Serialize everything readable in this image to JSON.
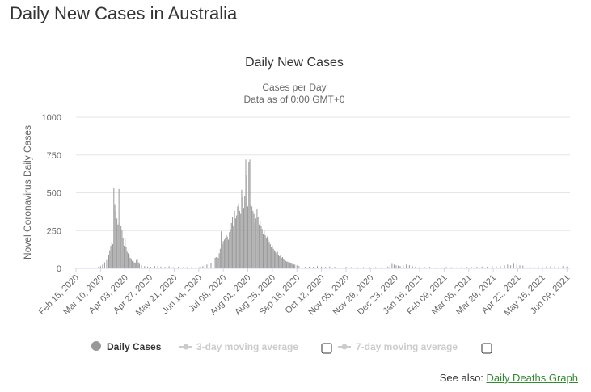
{
  "page": {
    "heading": "Daily New Cases in Australia",
    "see_also_label": "See also:",
    "see_also_link": "Daily Deaths Graph"
  },
  "colors": {
    "bar": "#999999",
    "legend_active": "#333333",
    "legend_inactive": "#cccccc",
    "grid": "#e6e6e6",
    "link": "#338a2e"
  },
  "chart_data": {
    "type": "bar",
    "title": "Daily New Cases",
    "subtitle_lines": [
      "Cases per Day",
      "Data as of 0:00 GMT+0"
    ],
    "ylabel": "Novel Coronavirus Daily Cases",
    "ylim": [
      0,
      1000
    ],
    "yticks": [
      "0",
      "250",
      "500",
      "750",
      "1000"
    ],
    "grid": true,
    "xlim": [
      "2020-02-15",
      "2021-06-12"
    ],
    "xticks": [
      "Feb 15, 2020",
      "Mar 10, 2020",
      "Apr 03, 2020",
      "Apr 27, 2020",
      "May 21, 2020",
      "Jun 14, 2020",
      "Jul 08, 2020",
      "Aug 01, 2020",
      "Aug 25, 2020",
      "Sep 18, 2020",
      "Oct 12, 2020",
      "Nov 05, 2020",
      "Nov 29, 2020",
      "Dec 23, 2020",
      "Jan 16, 2021",
      "Feb 09, 2021",
      "Mar 05, 2021",
      "Mar 29, 2021",
      "Apr 22, 2021",
      "May 16, 2021",
      "Jun 09, 2021"
    ],
    "legend": [
      {
        "name": "Daily Cases",
        "active": true
      },
      {
        "name": "3-day moving average",
        "active": false
      },
      {
        "name": "7-day moving average",
        "active": false
      }
    ],
    "series": [
      {
        "name": "Daily Cases",
        "points": [
          [
            "2020-03-03",
            3
          ],
          [
            "2020-03-06",
            5
          ],
          [
            "2020-03-08",
            10
          ],
          [
            "2020-03-10",
            15
          ],
          [
            "2020-03-12",
            25
          ],
          [
            "2020-03-14",
            40
          ],
          [
            "2020-03-16",
            55
          ],
          [
            "2020-03-18",
            90
          ],
          [
            "2020-03-19",
            120
          ],
          [
            "2020-03-20",
            150
          ],
          [
            "2020-03-21",
            170
          ],
          [
            "2020-03-22",
            160
          ],
          [
            "2020-03-23",
            530
          ],
          [
            "2020-03-24",
            420
          ],
          [
            "2020-03-25",
            380
          ],
          [
            "2020-03-26",
            330
          ],
          [
            "2020-03-27",
            290
          ],
          [
            "2020-03-28",
            525
          ],
          [
            "2020-03-29",
            300
          ],
          [
            "2020-03-30",
            280
          ],
          [
            "2020-03-31",
            250
          ],
          [
            "2020-04-01",
            200
          ],
          [
            "2020-04-02",
            150
          ],
          [
            "2020-04-03",
            195
          ],
          [
            "2020-04-04",
            140
          ],
          [
            "2020-04-05",
            110
          ],
          [
            "2020-04-06",
            100
          ],
          [
            "2020-04-07",
            90
          ],
          [
            "2020-04-08",
            70
          ],
          [
            "2020-04-09",
            60
          ],
          [
            "2020-04-10",
            50
          ],
          [
            "2020-04-11",
            45
          ],
          [
            "2020-04-12",
            40
          ],
          [
            "2020-04-13",
            35
          ],
          [
            "2020-04-14",
            55
          ],
          [
            "2020-04-15",
            60
          ],
          [
            "2020-04-16",
            40
          ],
          [
            "2020-04-17",
            30
          ],
          [
            "2020-04-19",
            20
          ],
          [
            "2020-04-22",
            15
          ],
          [
            "2020-04-25",
            12
          ],
          [
            "2020-04-28",
            10
          ],
          [
            "2020-05-02",
            15
          ],
          [
            "2020-05-05",
            18
          ],
          [
            "2020-05-08",
            12
          ],
          [
            "2020-05-12",
            10
          ],
          [
            "2020-05-16",
            14
          ],
          [
            "2020-05-20",
            8
          ],
          [
            "2020-05-25",
            10
          ],
          [
            "2020-05-30",
            8
          ],
          [
            "2020-06-03",
            10
          ],
          [
            "2020-06-07",
            8
          ],
          [
            "2020-06-11",
            6
          ],
          [
            "2020-06-15",
            10
          ],
          [
            "2020-06-18",
            15
          ],
          [
            "2020-06-20",
            20
          ],
          [
            "2020-06-22",
            25
          ],
          [
            "2020-06-24",
            30
          ],
          [
            "2020-06-26",
            35
          ],
          [
            "2020-06-28",
            50
          ],
          [
            "2020-06-30",
            70
          ],
          [
            "2020-07-01",
            75
          ],
          [
            "2020-07-02",
            80
          ],
          [
            "2020-07-03",
            70
          ],
          [
            "2020-07-04",
            100
          ],
          [
            "2020-07-05",
            130
          ],
          [
            "2020-07-06",
            245
          ],
          [
            "2020-07-07",
            160
          ],
          [
            "2020-07-08",
            180
          ],
          [
            "2020-07-09",
            190
          ],
          [
            "2020-07-10",
            200
          ],
          [
            "2020-07-11",
            220
          ],
          [
            "2020-07-12",
            210
          ],
          [
            "2020-07-13",
            190
          ],
          [
            "2020-07-14",
            240
          ],
          [
            "2020-07-15",
            260
          ],
          [
            "2020-07-16",
            300
          ],
          [
            "2020-07-17",
            340
          ],
          [
            "2020-07-18",
            280
          ],
          [
            "2020-07-19",
            380
          ],
          [
            "2020-07-20",
            330
          ],
          [
            "2020-07-21",
            350
          ],
          [
            "2020-07-22",
            410
          ],
          [
            "2020-07-23",
            430
          ],
          [
            "2020-07-24",
            380
          ],
          [
            "2020-07-25",
            360
          ],
          [
            "2020-07-26",
            520
          ],
          [
            "2020-07-27",
            470
          ],
          [
            "2020-07-28",
            400
          ],
          [
            "2020-07-29",
            480
          ],
          [
            "2020-07-30",
            720
          ],
          [
            "2020-07-31",
            620
          ],
          [
            "2020-08-01",
            410
          ],
          [
            "2020-08-02",
            700
          ],
          [
            "2020-08-03",
            720
          ],
          [
            "2020-08-04",
            420
          ],
          [
            "2020-08-05",
            410
          ],
          [
            "2020-08-06",
            380
          ],
          [
            "2020-08-07",
            360
          ],
          [
            "2020-08-08",
            300
          ],
          [
            "2020-08-09",
            330
          ],
          [
            "2020-08-10",
            390
          ],
          [
            "2020-08-11",
            340
          ],
          [
            "2020-08-12",
            290
          ],
          [
            "2020-08-13",
            310
          ],
          [
            "2020-08-14",
            280
          ],
          [
            "2020-08-15",
            260
          ],
          [
            "2020-08-16",
            230
          ],
          [
            "2020-08-17",
            250
          ],
          [
            "2020-08-18",
            220
          ],
          [
            "2020-08-19",
            200
          ],
          [
            "2020-08-20",
            210
          ],
          [
            "2020-08-21",
            190
          ],
          [
            "2020-08-22",
            170
          ],
          [
            "2020-08-23",
            160
          ],
          [
            "2020-08-24",
            140
          ],
          [
            "2020-08-25",
            150
          ],
          [
            "2020-08-26",
            130
          ],
          [
            "2020-08-27",
            120
          ],
          [
            "2020-08-28",
            110
          ],
          [
            "2020-08-29",
            100
          ],
          [
            "2020-08-30",
            110
          ],
          [
            "2020-08-31",
            90
          ],
          [
            "2020-09-01",
            80
          ],
          [
            "2020-09-02",
            90
          ],
          [
            "2020-09-03",
            70
          ],
          [
            "2020-09-04",
            75
          ],
          [
            "2020-09-05",
            60
          ],
          [
            "2020-09-06",
            55
          ],
          [
            "2020-09-07",
            50
          ],
          [
            "2020-09-08",
            45
          ],
          [
            "2020-09-09",
            45
          ],
          [
            "2020-09-10",
            40
          ],
          [
            "2020-09-11",
            40
          ],
          [
            "2020-09-12",
            35
          ],
          [
            "2020-09-13",
            30
          ],
          [
            "2020-09-14",
            30
          ],
          [
            "2020-09-15",
            25
          ],
          [
            "2020-09-16",
            25
          ],
          [
            "2020-09-18",
            20
          ],
          [
            "2020-09-20",
            15
          ],
          [
            "2020-09-23",
            12
          ],
          [
            "2020-09-26",
            10
          ],
          [
            "2020-09-30",
            12
          ],
          [
            "2020-10-04",
            10
          ],
          [
            "2020-10-08",
            15
          ],
          [
            "2020-10-12",
            12
          ],
          [
            "2020-10-16",
            10
          ],
          [
            "2020-10-20",
            12
          ],
          [
            "2020-10-25",
            10
          ],
          [
            "2020-10-30",
            8
          ],
          [
            "2020-11-05",
            10
          ],
          [
            "2020-11-10",
            8
          ],
          [
            "2020-11-16",
            10
          ],
          [
            "2020-11-22",
            8
          ],
          [
            "2020-11-28",
            10
          ],
          [
            "2020-12-04",
            8
          ],
          [
            "2020-12-10",
            10
          ],
          [
            "2020-12-16",
            12
          ],
          [
            "2020-12-18",
            20
          ],
          [
            "2020-12-20",
            30
          ],
          [
            "2020-12-22",
            25
          ],
          [
            "2020-12-24",
            20
          ],
          [
            "2020-12-26",
            18
          ],
          [
            "2020-12-28",
            15
          ],
          [
            "2020-12-31",
            20
          ],
          [
            "2021-01-03",
            25
          ],
          [
            "2021-01-06",
            20
          ],
          [
            "2021-01-09",
            15
          ],
          [
            "2021-01-12",
            12
          ],
          [
            "2021-01-16",
            10
          ],
          [
            "2021-01-21",
            8
          ],
          [
            "2021-01-26",
            10
          ],
          [
            "2021-02-01",
            6
          ],
          [
            "2021-02-06",
            8
          ],
          [
            "2021-02-11",
            10
          ],
          [
            "2021-02-16",
            8
          ],
          [
            "2021-02-21",
            6
          ],
          [
            "2021-02-26",
            8
          ],
          [
            "2021-03-03",
            10
          ],
          [
            "2021-03-08",
            8
          ],
          [
            "2021-03-13",
            10
          ],
          [
            "2021-03-18",
            12
          ],
          [
            "2021-03-23",
            10
          ],
          [
            "2021-03-28",
            15
          ],
          [
            "2021-04-01",
            12
          ],
          [
            "2021-04-05",
            15
          ],
          [
            "2021-04-09",
            20
          ],
          [
            "2021-04-12",
            25
          ],
          [
            "2021-04-15",
            20
          ],
          [
            "2021-04-18",
            30
          ],
          [
            "2021-04-21",
            25
          ],
          [
            "2021-04-24",
            20
          ],
          [
            "2021-04-27",
            18
          ],
          [
            "2021-04-30",
            15
          ],
          [
            "2021-05-04",
            12
          ],
          [
            "2021-05-08",
            10
          ],
          [
            "2021-05-12",
            12
          ],
          [
            "2021-05-16",
            10
          ],
          [
            "2021-05-20",
            12
          ],
          [
            "2021-05-24",
            15
          ],
          [
            "2021-05-28",
            12
          ],
          [
            "2021-06-01",
            10
          ],
          [
            "2021-06-05",
            15
          ],
          [
            "2021-06-09",
            12
          ]
        ]
      }
    ]
  }
}
